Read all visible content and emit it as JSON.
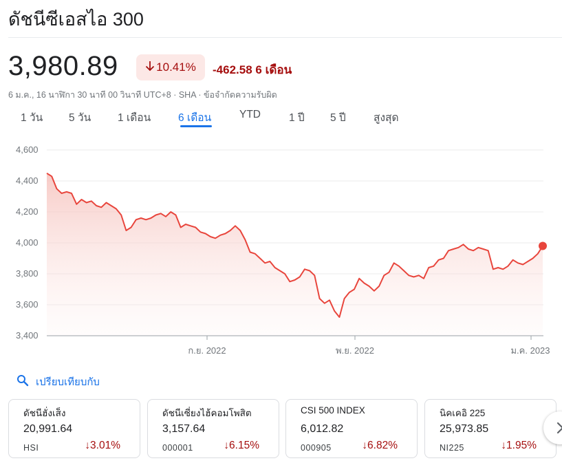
{
  "title": "ดัชนีซีเอสไอ 300",
  "price": "3,980.89",
  "change_percent": "10.41%",
  "change_abs": "-462.58",
  "change_period": "6 เดือน",
  "meta": "6 ม.ค., 16 นาฬิกา 30 นาที 00 วินาที UTC+8 · SHA · ข้อจำกัดความรับผิด",
  "tabs": [
    "1 วัน",
    "5 วัน",
    "1 เดือน",
    "6 เดือน",
    "YTD",
    "1 ปี",
    "5 ปี",
    "สูงสุด"
  ],
  "active_tab": "6 เดือน",
  "compare_label": "เปรียบเทียบกับ",
  "colors": {
    "negative": "#a50e0e",
    "line": "#e8453c",
    "accent": "#1a73e8"
  },
  "cards": [
    {
      "name": "ดัชนีฮั่งเส็ง",
      "value": "20,991.64",
      "symbol": "HSI",
      "change": "3.01%"
    },
    {
      "name": "ดัชนีเซี่ยงไฮ้คอมโพสิต",
      "value": "3,157.64",
      "symbol": "000001",
      "change": "6.15%"
    },
    {
      "name": "CSI 500 INDEX",
      "value": "6,012.82",
      "symbol": "000905",
      "change": "6.82%"
    },
    {
      "name": "นิคเคอิ 225",
      "value": "25,973.85",
      "symbol": "NI225",
      "change": "1.95%"
    }
  ],
  "chart_data": {
    "type": "line",
    "ylim": [
      3400,
      4600
    ],
    "yticks": [
      "4,600",
      "4,400",
      "4,200",
      "4,000",
      "3,800",
      "3,600",
      "3,400"
    ],
    "xticks": [
      "ก.ย. 2022",
      "พ.ย. 2022",
      "ม.ค. 2023"
    ],
    "series": [
      {
        "values": [
          4450,
          4430,
          4350,
          4320,
          4330,
          4320,
          4250,
          4280,
          4260,
          4270,
          4240,
          4230,
          4260,
          4240,
          4220,
          4180,
          4080,
          4100,
          4150,
          4160,
          4150,
          4160,
          4180,
          4190,
          4170,
          4200,
          4180,
          4100,
          4120,
          4110,
          4100,
          4070,
          4060,
          4040,
          4030,
          4050,
          4060,
          4080,
          4110,
          4080,
          4020,
          3940,
          3930,
          3900,
          3870,
          3880,
          3840,
          3820,
          3800,
          3750,
          3760,
          3780,
          3830,
          3820,
          3790,
          3640,
          3610,
          3630,
          3560,
          3520,
          3640,
          3680,
          3700,
          3770,
          3740,
          3720,
          3690,
          3720,
          3790,
          3810,
          3870,
          3850,
          3820,
          3790,
          3780,
          3790,
          3770,
          3840,
          3850,
          3890,
          3900,
          3950,
          3960,
          3970,
          3990,
          3960,
          3950,
          3970,
          3960,
          3950,
          3830,
          3840,
          3830,
          3850,
          3890,
          3870,
          3860,
          3880,
          3900,
          3930,
          3980
        ]
      }
    ]
  }
}
